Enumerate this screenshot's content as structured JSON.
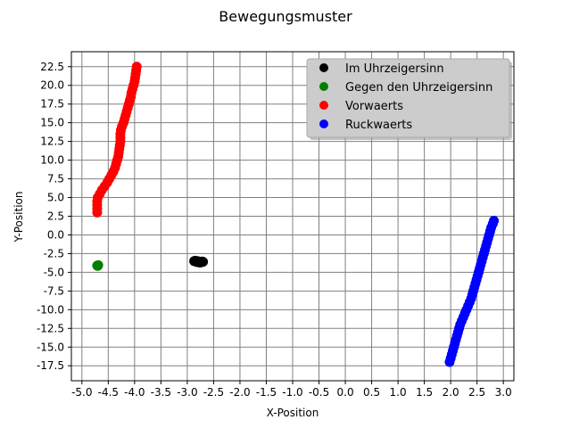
{
  "chart_data": {
    "type": "scatter",
    "title": "Bewegungsmuster",
    "xlabel": "X-Position",
    "ylabel": "Y-Position",
    "xlim": [
      -5.2,
      3.2
    ],
    "ylim": [
      -19.5,
      24.5
    ],
    "xticks": [
      -5.0,
      -4.5,
      -4.0,
      -3.5,
      -3.0,
      -2.5,
      -2.0,
      -1.5,
      -1.0,
      -0.5,
      0.0,
      0.5,
      1.0,
      1.5,
      2.0,
      2.5,
      3.0
    ],
    "xtick_labels": [
      "-5.0",
      "-4.5",
      "-4.0",
      "-3.5",
      "-3.0",
      "-2.5",
      "-2.0",
      "-1.5",
      "-1.0",
      "-0.5",
      "0.0",
      "0.5",
      "1.0",
      "1.5",
      "2.0",
      "2.5",
      "3.0"
    ],
    "yticks": [
      -17.5,
      -15.0,
      -12.5,
      -10.0,
      -7.5,
      -5.0,
      -2.5,
      0.0,
      2.5,
      5.0,
      7.5,
      10.0,
      12.5,
      15.0,
      17.5,
      20.0,
      22.5
    ],
    "ytick_labels": [
      "-17.5",
      "-15.0",
      "-12.5",
      "-10.0",
      "-7.5",
      "-5.0",
      "-2.5",
      "0.0",
      "2.5",
      "5.0",
      "7.5",
      "10.0",
      "12.5",
      "15.0",
      "17.5",
      "20.0",
      "22.5"
    ],
    "grid": true,
    "legend_position": "top-right",
    "series": [
      {
        "name": "Im Uhrzeigersinn",
        "color": "#000000",
        "points": [
          [
            -2.87,
            -3.5
          ],
          [
            -2.84,
            -3.55
          ],
          [
            -2.81,
            -3.6
          ],
          [
            -2.78,
            -3.65
          ],
          [
            -2.75,
            -3.6
          ],
          [
            -2.72,
            -3.55
          ],
          [
            -2.7,
            -3.6
          ],
          [
            -2.85,
            -3.45
          ],
          [
            -2.8,
            -3.5
          ],
          [
            -2.76,
            -3.7
          ],
          [
            -2.73,
            -3.65
          ],
          [
            -2.82,
            -3.62
          ]
        ]
      },
      {
        "name": "Gegen den Uhrzeigersinn",
        "color": "#008000",
        "points": [
          [
            -4.71,
            -4.1
          ],
          [
            -4.7,
            -4.15
          ],
          [
            -4.69,
            -4.05
          ]
        ]
      },
      {
        "name": "Vorwaerts",
        "color": "#ff0000",
        "points": [
          [
            -4.71,
            3.0
          ],
          [
            -4.71,
            3.5
          ],
          [
            -4.71,
            4.0
          ],
          [
            -4.71,
            4.5
          ],
          [
            -4.7,
            5.0
          ],
          [
            -4.66,
            5.5
          ],
          [
            -4.62,
            6.0
          ],
          [
            -4.57,
            6.5
          ],
          [
            -4.52,
            7.0
          ],
          [
            -4.48,
            7.5
          ],
          [
            -4.44,
            8.0
          ],
          [
            -4.4,
            8.5
          ],
          [
            -4.37,
            9.0
          ],
          [
            -4.35,
            9.5
          ],
          [
            -4.33,
            10.0
          ],
          [
            -4.31,
            10.5
          ],
          [
            -4.3,
            11.0
          ],
          [
            -4.29,
            11.5
          ],
          [
            -4.28,
            12.0
          ],
          [
            -4.27,
            12.5
          ],
          [
            -4.27,
            13.0
          ],
          [
            -4.27,
            13.5
          ],
          [
            -4.26,
            14.0
          ],
          [
            -4.24,
            14.5
          ],
          [
            -4.21,
            15.0
          ],
          [
            -4.19,
            15.5
          ],
          [
            -4.17,
            16.0
          ],
          [
            -4.15,
            16.5
          ],
          [
            -4.13,
            17.0
          ],
          [
            -4.11,
            17.5
          ],
          [
            -4.09,
            18.0
          ],
          [
            -4.07,
            18.5
          ],
          [
            -4.06,
            19.0
          ],
          [
            -4.04,
            19.5
          ],
          [
            -4.02,
            20.0
          ],
          [
            -4.0,
            20.5
          ],
          [
            -3.99,
            21.0
          ],
          [
            -3.98,
            21.5
          ],
          [
            -3.97,
            22.0
          ],
          [
            -3.96,
            22.5
          ]
        ]
      },
      {
        "name": "Ruckwaerts",
        "color": "#0000ff",
        "points": [
          [
            1.98,
            -17.0
          ],
          [
            2.0,
            -16.5
          ],
          [
            2.02,
            -16.0
          ],
          [
            2.04,
            -15.5
          ],
          [
            2.06,
            -15.0
          ],
          [
            2.08,
            -14.5
          ],
          [
            2.1,
            -14.0
          ],
          [
            2.12,
            -13.5
          ],
          [
            2.14,
            -13.0
          ],
          [
            2.16,
            -12.5
          ],
          [
            2.18,
            -12.0
          ],
          [
            2.21,
            -11.5
          ],
          [
            2.24,
            -11.0
          ],
          [
            2.27,
            -10.5
          ],
          [
            2.3,
            -10.0
          ],
          [
            2.33,
            -9.5
          ],
          [
            2.36,
            -9.0
          ],
          [
            2.39,
            -8.5
          ],
          [
            2.41,
            -8.0
          ],
          [
            2.43,
            -7.5
          ],
          [
            2.45,
            -7.0
          ],
          [
            2.47,
            -6.5
          ],
          [
            2.49,
            -6.0
          ],
          [
            2.51,
            -5.5
          ],
          [
            2.53,
            -5.0
          ],
          [
            2.55,
            -4.5
          ],
          [
            2.57,
            -4.0
          ],
          [
            2.59,
            -3.5
          ],
          [
            2.61,
            -3.0
          ],
          [
            2.63,
            -2.5
          ],
          [
            2.65,
            -2.0
          ],
          [
            2.67,
            -1.5
          ],
          [
            2.69,
            -1.0
          ],
          [
            2.71,
            -0.5
          ],
          [
            2.73,
            0.0
          ],
          [
            2.75,
            0.5
          ],
          [
            2.77,
            1.0
          ],
          [
            2.8,
            1.5
          ],
          [
            2.82,
            1.9
          ]
        ]
      }
    ]
  }
}
